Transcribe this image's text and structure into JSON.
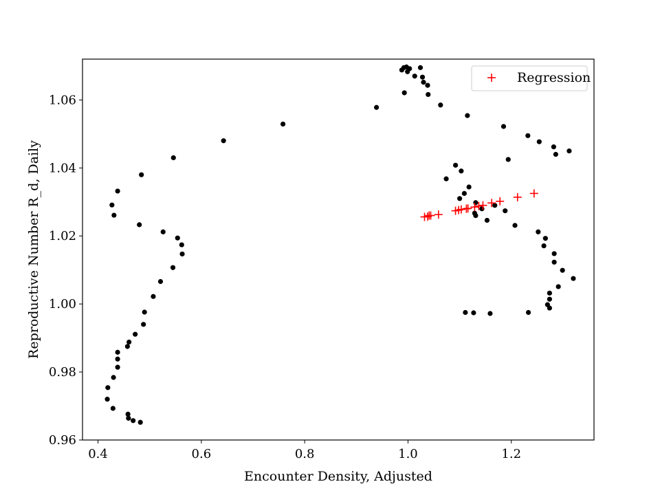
{
  "chart_data": {
    "type": "scatter",
    "title": "",
    "xlabel": "Encounter Density, Adjusted",
    "ylabel": "Reproductive Number R_d, Daily",
    "xlim": [
      0.37,
      1.36
    ],
    "ylim": [
      0.96,
      1.072
    ],
    "xticks": [
      0.4,
      0.6,
      0.8,
      1.0,
      1.2
    ],
    "xtick_labels": [
      "0.4",
      "0.6",
      "0.8",
      "1.0",
      "1.2"
    ],
    "yticks": [
      0.96,
      0.98,
      1.0,
      1.02,
      1.04,
      1.06
    ],
    "ytick_labels": [
      "0.96",
      "0.98",
      "1.00",
      "1.02",
      "1.04",
      "1.06"
    ],
    "grid": false,
    "legend_position": "upper right",
    "series": [
      {
        "marker": "dot",
        "color": "#000000",
        "points": [
          [
            0.988,
            1.0688
          ],
          [
            0.992,
            1.0695
          ],
          [
            0.997,
            1.0697
          ],
          [
            1.003,
            1.0692
          ],
          [
            0.999,
            1.0683
          ],
          [
            1.024,
            1.0695
          ],
          [
            1.028,
            1.0667
          ],
          [
            1.013,
            1.067
          ],
          [
            1.03,
            1.0652
          ],
          [
            1.038,
            1.0643
          ],
          [
            0.993,
            1.0621
          ],
          [
            1.039,
            1.0616
          ],
          [
            1.063,
            1.0585
          ],
          [
            0.939,
            1.0578
          ],
          [
            1.115,
            1.0554
          ],
          [
            0.758,
            1.0529
          ],
          [
            1.185,
            1.0522
          ],
          [
            1.232,
            1.0495
          ],
          [
            1.254,
            1.0477
          ],
          [
            0.643,
            1.048
          ],
          [
            1.282,
            1.0462
          ],
          [
            1.312,
            1.045
          ],
          [
            1.286,
            1.044
          ],
          [
            0.546,
            1.043
          ],
          [
            1.194,
            1.0425
          ],
          [
            1.092,
            1.0408
          ],
          [
            1.103,
            1.0391
          ],
          [
            0.484,
            1.038
          ],
          [
            1.074,
            1.0368
          ],
          [
            1.118,
            1.0344
          ],
          [
            0.438,
            1.0332
          ],
          [
            1.109,
            1.0325
          ],
          [
            1.1,
            1.031
          ],
          [
            1.131,
            1.0298
          ],
          [
            0.427,
            1.0291
          ],
          [
            1.168,
            1.029
          ],
          [
            1.143,
            1.028
          ],
          [
            1.188,
            1.0274
          ],
          [
            1.129,
            1.0267
          ],
          [
            0.431,
            1.0261
          ],
          [
            1.131,
            1.026
          ],
          [
            1.153,
            1.0246
          ],
          [
            0.48,
            1.0233
          ],
          [
            1.207,
            1.0231
          ],
          [
            0.526,
            1.0212
          ],
          [
            1.252,
            1.0212
          ],
          [
            0.554,
            1.0194
          ],
          [
            1.266,
            1.0193
          ],
          [
            0.562,
            1.0174
          ],
          [
            1.263,
            1.0171
          ],
          [
            0.563,
            1.0147
          ],
          [
            1.283,
            1.0148
          ],
          [
            1.283,
            1.0123
          ],
          [
            0.545,
            1.0107
          ],
          [
            1.299,
            1.0099
          ],
          [
            1.32,
            1.0075
          ],
          [
            0.521,
            1.0066
          ],
          [
            1.291,
            1.0051
          ],
          [
            1.274,
            1.0032
          ],
          [
            0.507,
            1.0022
          ],
          [
            1.274,
            1.0014
          ],
          [
            1.27,
            0.9998
          ],
          [
            1.274,
            0.9988
          ],
          [
            0.49,
            0.9976
          ],
          [
            1.111,
            0.9975
          ],
          [
            1.127,
            0.9974
          ],
          [
            1.159,
            0.9972
          ],
          [
            1.233,
            0.9975
          ],
          [
            0.488,
            0.994
          ],
          [
            0.472,
            0.9911
          ],
          [
            0.46,
            0.9888
          ],
          [
            0.457,
            0.9875
          ],
          [
            0.438,
            0.9858
          ],
          [
            0.438,
            0.9838
          ],
          [
            0.438,
            0.9814
          ],
          [
            0.43,
            0.9784
          ],
          [
            0.419,
            0.9754
          ],
          [
            0.418,
            0.972
          ],
          [
            0.429,
            0.9693
          ],
          [
            0.458,
            0.9676
          ],
          [
            0.459,
            0.9664
          ],
          [
            0.468,
            0.9657
          ],
          [
            0.482,
            0.9652
          ]
        ]
      },
      {
        "name": "Regression",
        "marker": "plus",
        "color": "#ff0000",
        "points": [
          [
            1.032,
            1.0256
          ],
          [
            1.038,
            1.0257
          ],
          [
            1.041,
            1.026
          ],
          [
            1.044,
            1.026
          ],
          [
            1.059,
            1.0263
          ],
          [
            1.092,
            1.0274
          ],
          [
            1.098,
            1.0276
          ],
          [
            1.103,
            1.0278
          ],
          [
            1.113,
            1.028
          ],
          [
            1.116,
            1.0281
          ],
          [
            1.129,
            1.0285
          ],
          [
            1.137,
            1.0288
          ],
          [
            1.145,
            1.029
          ],
          [
            1.162,
            1.0297
          ],
          [
            1.178,
            1.0302
          ],
          [
            1.212,
            1.0314
          ],
          [
            1.244,
            1.0325
          ]
        ]
      }
    ]
  }
}
